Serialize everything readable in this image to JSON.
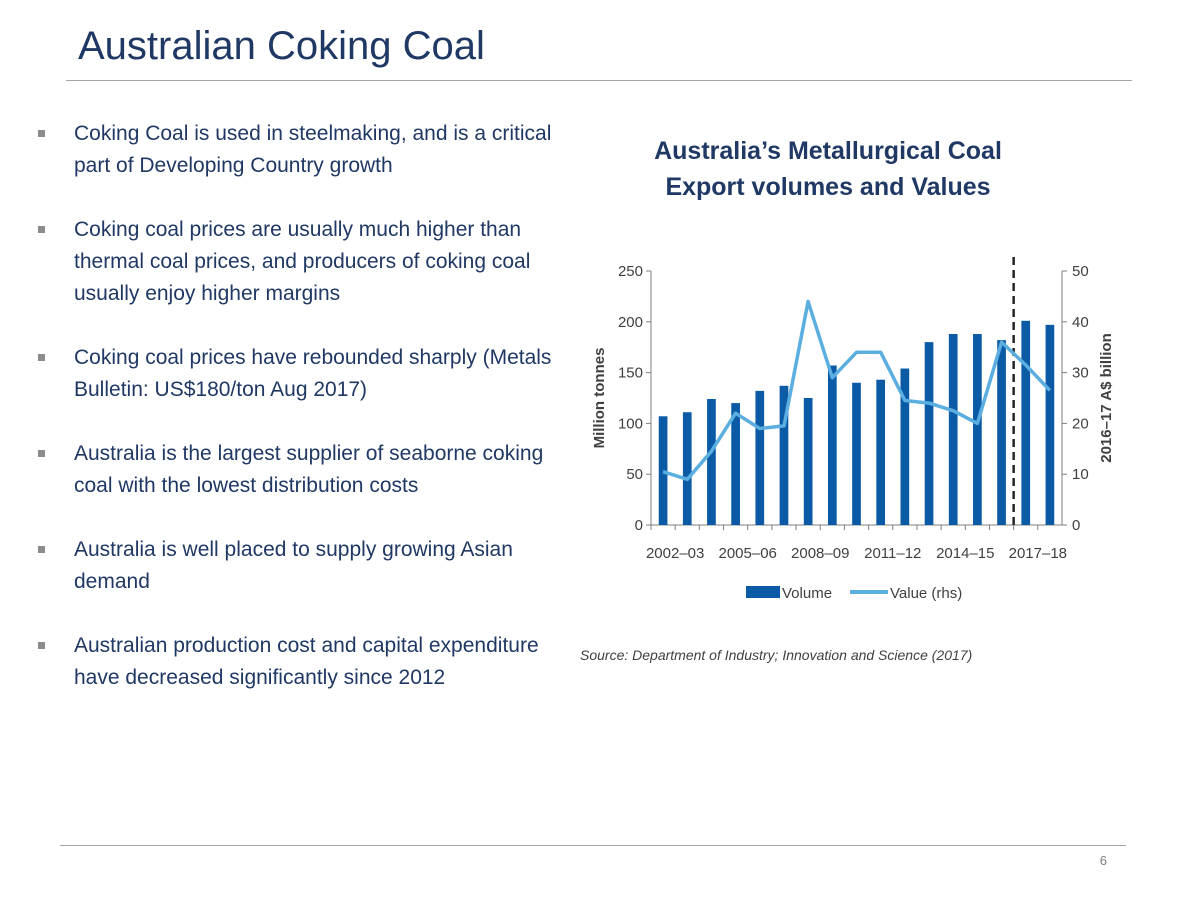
{
  "title": "Australian Coking Coal",
  "bullets": [
    "Coking Coal is used in steelmaking, and is a critical part of Developing Country growth",
    "Coking coal prices are usually much higher than thermal coal prices, and producers of coking coal usually enjoy higher margins",
    "Coking coal prices have rebounded sharply (Metals Bulletin: US$180/ton Aug 2017)",
    "Australia is the largest supplier of seaborne coking coal with the lowest distribution costs",
    "Australia is well placed to supply growing Asian demand",
    "Australian production cost and capital expenditure have decreased significantly since 2012"
  ],
  "page_number": "6",
  "source": "Source: Department of Industry; Innovation and Science (2017)",
  "colors": {
    "title": "#1f3864",
    "volume": "#0b5aa6",
    "value": "#5aaee0"
  },
  "chart_data": {
    "type": "bar",
    "title_lines": [
      "Australia’s  Metallurgical Coal",
      "Export volumes and Values"
    ],
    "categories": [
      "2002–03",
      "2003–04",
      "2004–05",
      "2005–06",
      "2006–07",
      "2007–08",
      "2008–09",
      "2009–10",
      "2010–11",
      "2011–12",
      "2012–13",
      "2013–14",
      "2014–15",
      "2015–16",
      "2016–17",
      "2017–18",
      "2018–19"
    ],
    "x_tick_labels": [
      "2002–03",
      "2005–06",
      "2008–09",
      "2011–12",
      "2014–15",
      "2017–18"
    ],
    "x_tick_indices": [
      0,
      3,
      6,
      9,
      12,
      15
    ],
    "series": [
      {
        "name": "Volume",
        "kind": "bar",
        "axis": "left",
        "values": [
          107,
          111,
          124,
          120,
          132,
          137,
          125,
          157,
          140,
          143,
          154,
          180,
          188,
          188,
          182,
          201,
          197
        ]
      },
      {
        "name": "Value (rhs)",
        "kind": "line",
        "axis": "right",
        "values": [
          10.5,
          9,
          14.5,
          22,
          19,
          19.5,
          44,
          29,
          34,
          34,
          24.5,
          24,
          22.5,
          20,
          36,
          31.5,
          26.5
        ]
      }
    ],
    "ylabel": "Million tonnes",
    "ylim": [
      0,
      250
    ],
    "yticks": [
      0,
      50,
      100,
      150,
      200,
      250
    ],
    "y2label": "2016–17 A$ billion",
    "y2lim": [
      0,
      50
    ],
    "y2ticks": [
      0,
      10,
      20,
      30,
      40,
      50
    ],
    "forecast_divider_after": "2016–17",
    "legend_position": "bottom",
    "grid": false
  }
}
